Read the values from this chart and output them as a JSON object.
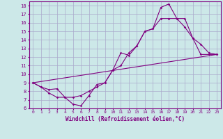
{
  "xlabel": "Windchill (Refroidissement éolien,°C)",
  "background_color": "#cce8e8",
  "line_color": "#800080",
  "grid_color": "#aaaacc",
  "xlim": [
    -0.5,
    23.5
  ],
  "ylim": [
    6,
    18.5
  ],
  "xticks": [
    0,
    1,
    2,
    3,
    4,
    5,
    6,
    7,
    8,
    9,
    10,
    11,
    12,
    13,
    14,
    15,
    16,
    17,
    18,
    19,
    20,
    21,
    22,
    23
  ],
  "yticks": [
    6,
    7,
    8,
    9,
    10,
    11,
    12,
    13,
    14,
    15,
    16,
    17,
    18
  ],
  "line1_x": [
    0,
    1,
    2,
    3,
    4,
    5,
    6,
    7,
    8,
    9,
    10,
    11,
    12,
    13,
    14,
    15,
    16,
    17,
    18,
    19,
    20,
    21,
    22,
    23
  ],
  "line1_y": [
    9.0,
    8.5,
    7.8,
    7.3,
    7.3,
    6.5,
    6.3,
    7.5,
    8.8,
    9.0,
    10.5,
    12.5,
    12.2,
    13.3,
    15.0,
    15.3,
    17.8,
    18.2,
    16.5,
    16.5,
    14.2,
    13.5,
    12.5,
    12.3
  ],
  "line2_x": [
    0,
    1,
    2,
    3,
    4,
    5,
    6,
    7,
    8,
    9,
    10,
    11,
    12,
    13,
    14,
    15,
    16,
    17,
    18,
    19,
    20,
    21,
    22,
    23
  ],
  "line2_y": [
    9.0,
    8.5,
    8.2,
    8.3,
    7.3,
    7.3,
    7.5,
    8.0,
    8.5,
    9.0,
    10.5,
    11.0,
    12.5,
    13.3,
    15.0,
    15.3,
    16.5,
    16.5,
    16.5,
    15.5,
    14.2,
    12.3,
    12.3,
    12.3
  ],
  "line3_x": [
    0,
    23
  ],
  "line3_y": [
    9.0,
    12.3
  ]
}
